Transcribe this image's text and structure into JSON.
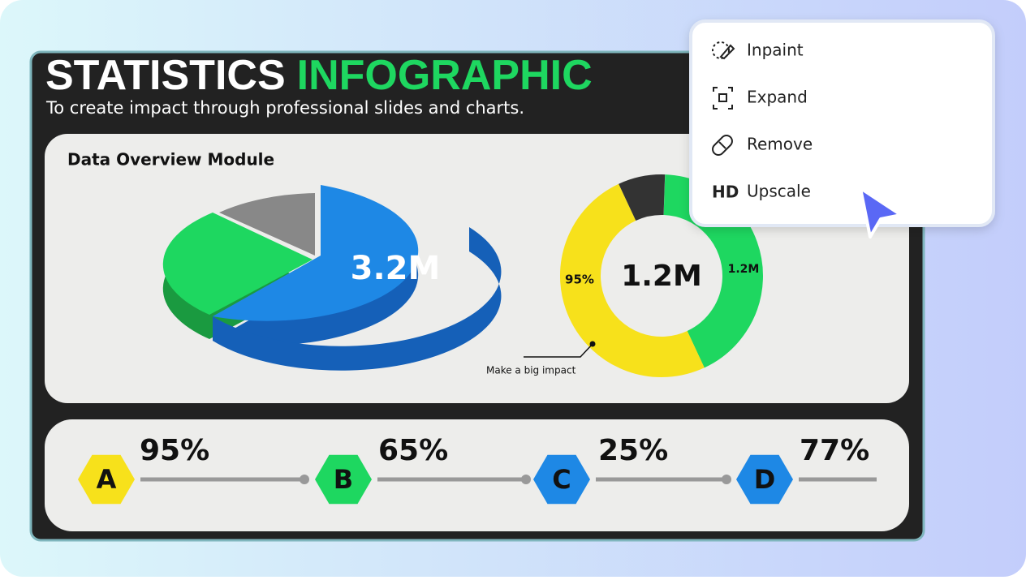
{
  "infographic": {
    "title_main": "STATISTICS",
    "title_accent": "INFOGRAPHIC",
    "subtitle": "To create impact through professional slides and charts.",
    "module_title": "Data Overview Module",
    "pie_label": "3.2M",
    "donut_center": "1.2M",
    "donut_left_label": "95%",
    "donut_right_label": "1.2M",
    "annotation": "Make a big impact",
    "steps": [
      {
        "letter": "A",
        "value": "95%"
      },
      {
        "letter": "B",
        "value": "65%"
      },
      {
        "letter": "C",
        "value": "25%"
      },
      {
        "letter": "D",
        "value": "77%"
      }
    ]
  },
  "menu": {
    "items": [
      "Inpaint",
      "Expand",
      "Remove",
      "Upscale"
    ],
    "hd_badge": "HD"
  }
}
